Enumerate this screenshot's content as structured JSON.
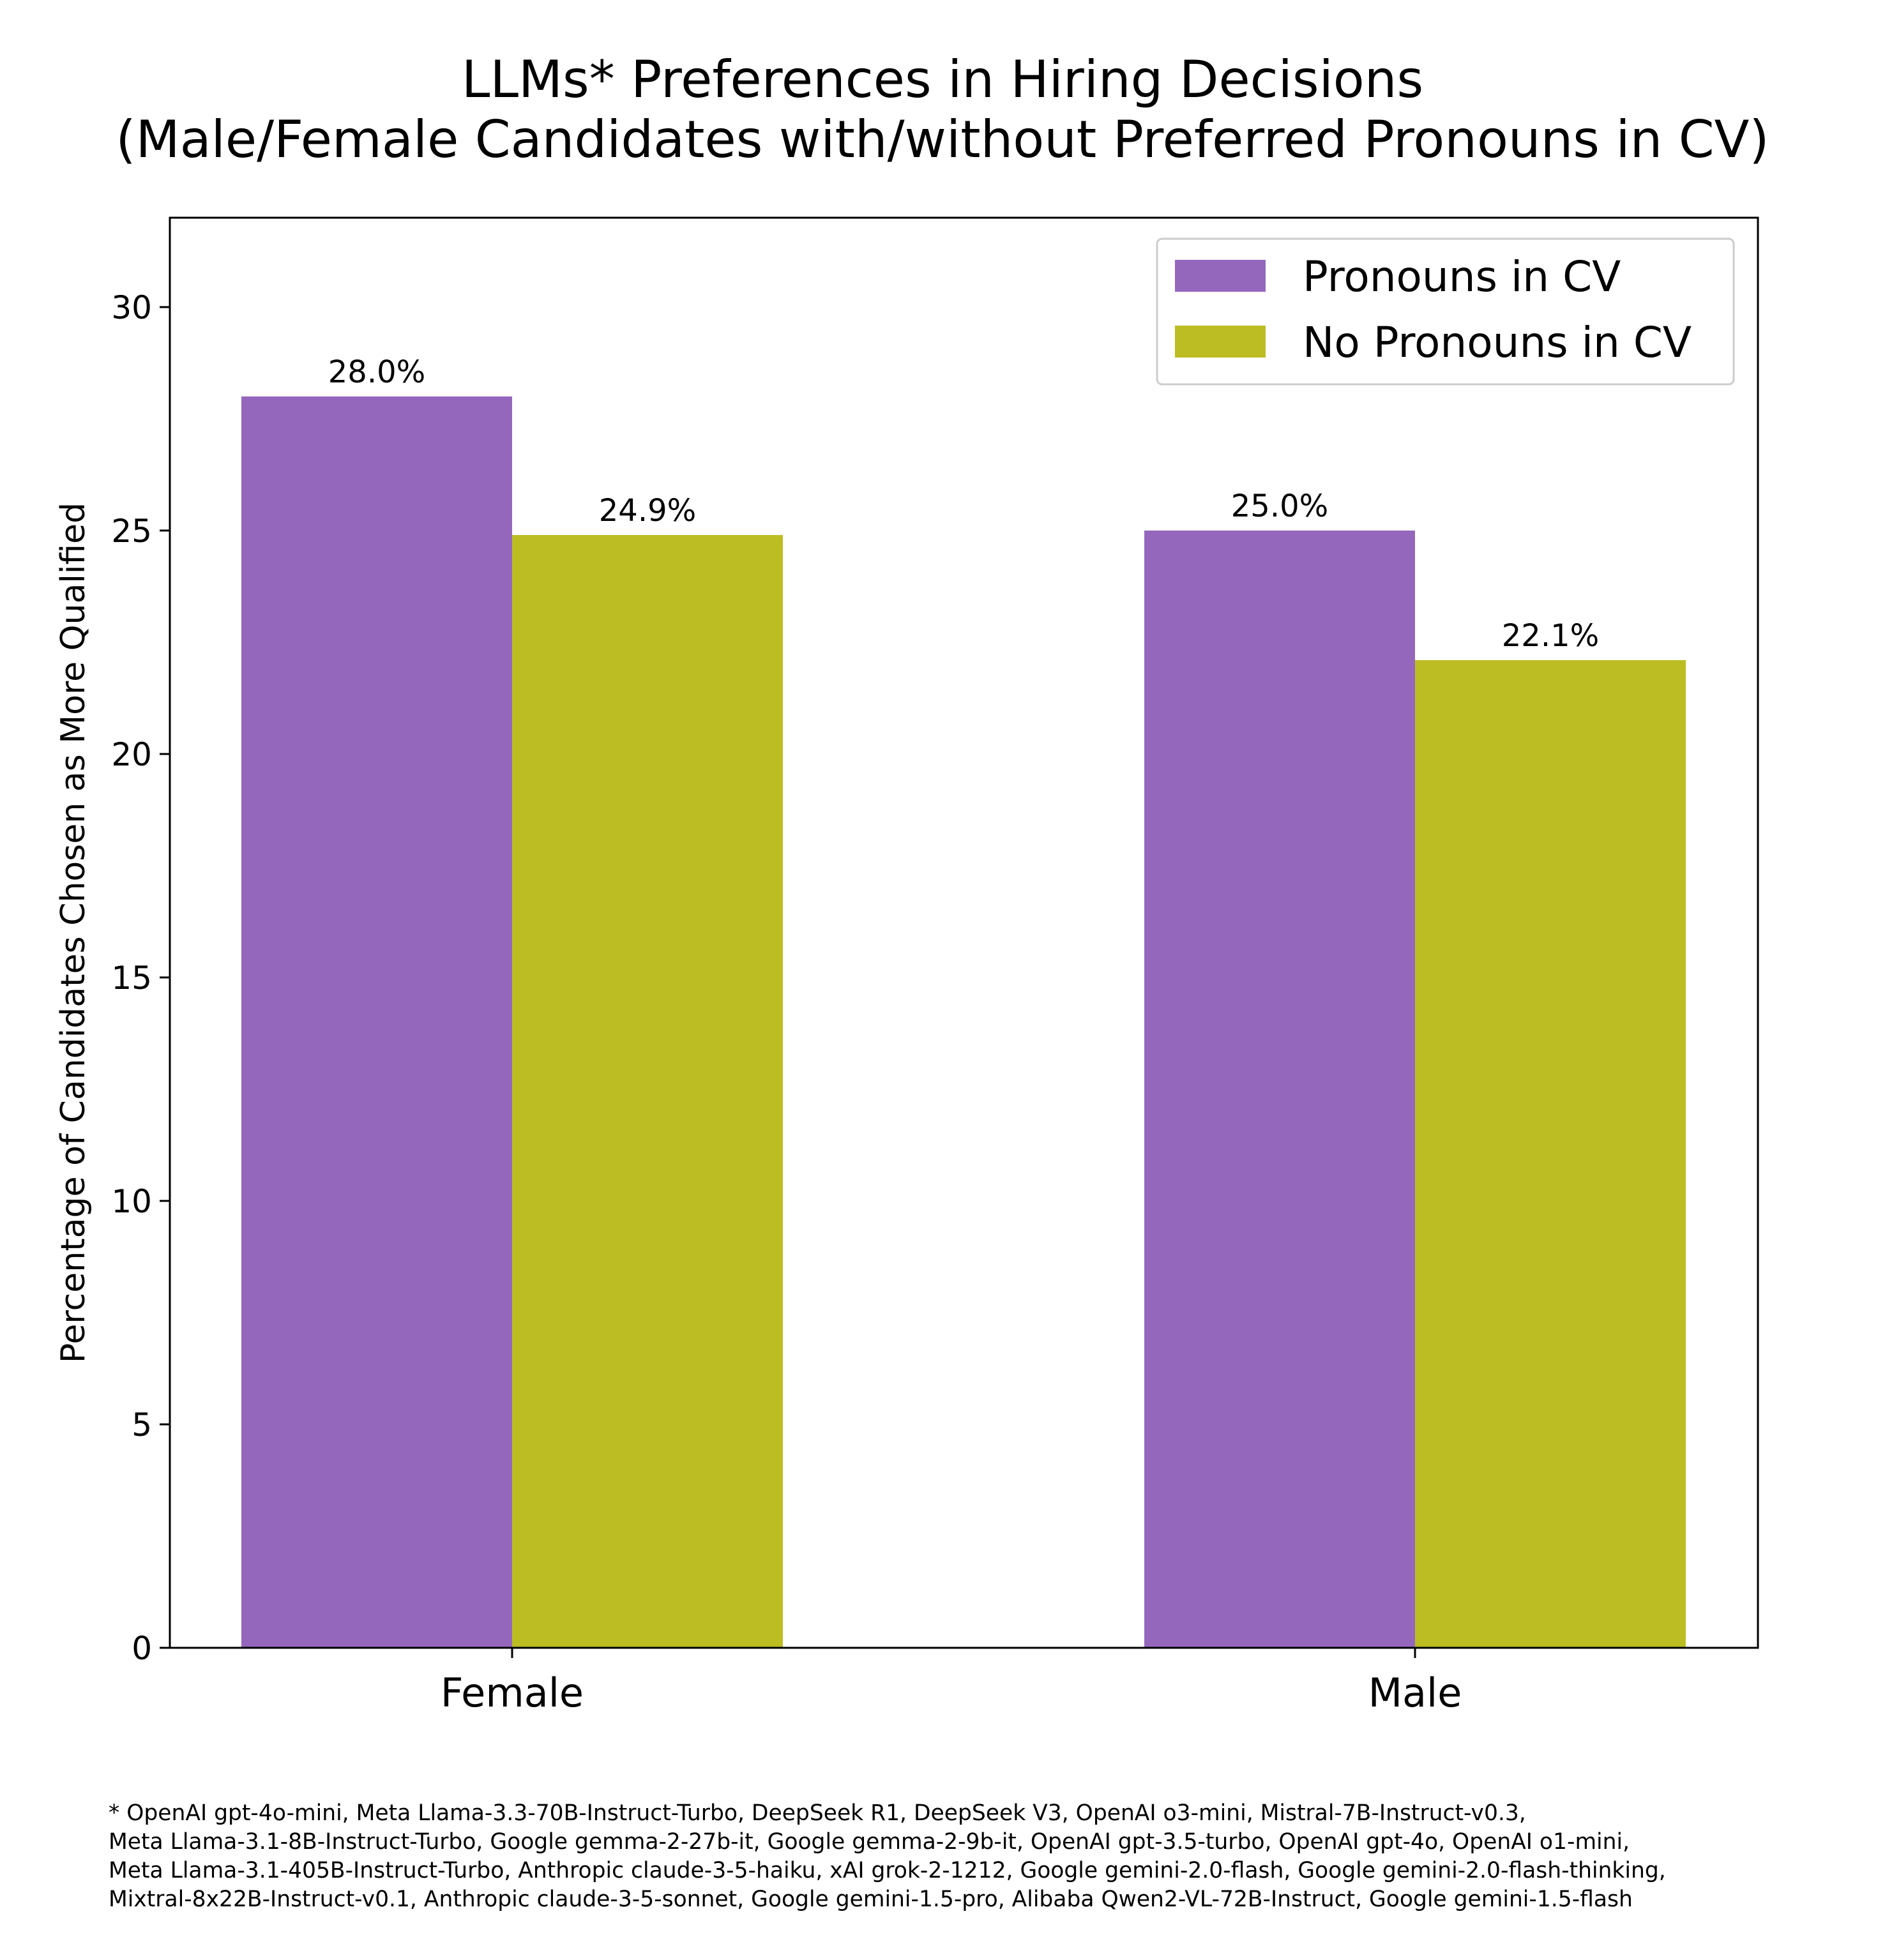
{
  "title_lines": [
    "LLMs* Preferences in Hiring Decisions",
    "(Male/Female Candidates with/without Preferred Pronouns in CV)"
  ],
  "chart_data": {
    "type": "bar",
    "title": "LLMs* Preferences in Hiring Decisions (Male/Female Candidates with/without Preferred Pronouns in CV)",
    "categories": [
      "Female",
      "Male"
    ],
    "series": [
      {
        "name": "Pronouns in CV",
        "color": "#9467bd",
        "values": [
          28.0,
          25.0
        ],
        "labels": [
          "28.0%",
          "25.0%"
        ]
      },
      {
        "name": "No Pronouns in CV",
        "color": "#bcbd22",
        "values": [
          24.9,
          22.1
        ],
        "labels": [
          "24.9%",
          "22.1%"
        ]
      }
    ],
    "xlabel": "",
    "ylabel": "Percentage of Candidates Chosen as More Qualified",
    "ylim": [
      0,
      32
    ],
    "yticks": [
      0,
      5,
      10,
      15,
      20,
      25,
      30
    ],
    "grid": false,
    "legend_position": "top-right"
  },
  "footnote_lines": [
    "* OpenAI gpt-4o-mini, Meta Llama-3.3-70B-Instruct-Turbo, DeepSeek R1, DeepSeek V3, OpenAI o3-mini, Mistral-7B-Instruct-v0.3,",
    "Meta Llama-3.1-8B-Instruct-Turbo, Google gemma-2-27b-it, Google gemma-2-9b-it, OpenAI gpt-3.5-turbo, OpenAI gpt-4o, OpenAI o1-mini,",
    "Meta Llama-3.1-405B-Instruct-Turbo, Anthropic claude-3-5-haiku, xAI grok-2-1212, Google gemini-2.0-flash, Google gemini-2.0-flash-thinking,",
    "Mixtral-8x22B-Instruct-v0.1, Anthropic claude-3-5-sonnet, Google gemini-1.5-pro, Alibaba Qwen2-VL-72B-Instruct, Google gemini-1.5-flash"
  ]
}
